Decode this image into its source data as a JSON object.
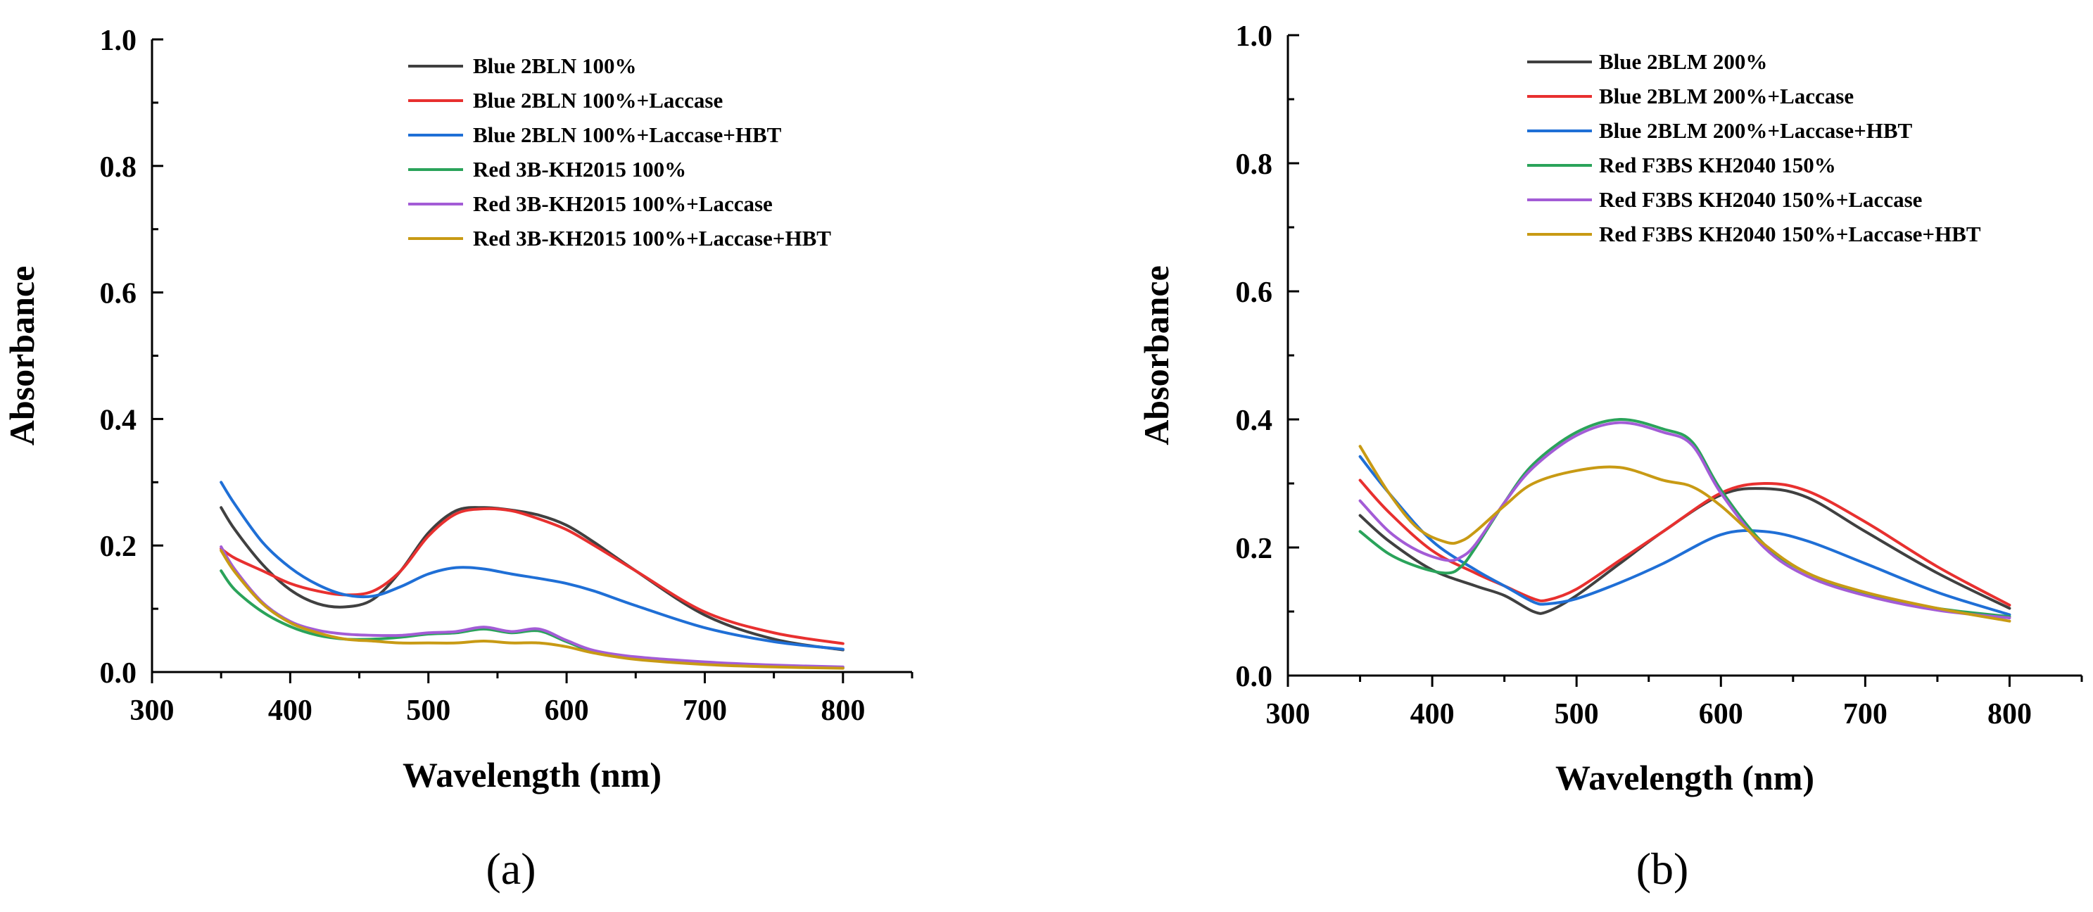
{
  "chart_data": [
    {
      "type": "line",
      "panel_label": "(a)",
      "xlabel": "Wavelength (nm)",
      "ylabel": "Absorbance",
      "xlim": [
        300,
        850
      ],
      "ylim": [
        0,
        1.0
      ],
      "xticks": [
        300,
        400,
        500,
        600,
        700,
        800
      ],
      "yticks": [
        0.0,
        0.2,
        0.4,
        0.6,
        0.8,
        1.0
      ],
      "xtick_labels": [
        "300",
        "400",
        "500",
        "600",
        "700",
        "800"
      ],
      "ytick_labels": [
        "0.0",
        "0.2",
        "0.4",
        "0.6",
        "0.8",
        "1.0"
      ],
      "legend_position": "top-right",
      "series": [
        {
          "name": "Blue 2BLN 100%",
          "color": "#404040",
          "x": [
            350,
            360,
            380,
            400,
            420,
            440,
            460,
            480,
            500,
            520,
            540,
            560,
            580,
            600,
            620,
            650,
            700,
            750,
            800
          ],
          "y": [
            0.26,
            0.225,
            0.17,
            0.13,
            0.108,
            0.103,
            0.115,
            0.16,
            0.22,
            0.255,
            0.26,
            0.256,
            0.248,
            0.232,
            0.205,
            0.16,
            0.09,
            0.052,
            0.035
          ]
        },
        {
          "name": "Blue 2BLN 100%+Laccase",
          "color": "#e8302f",
          "x": [
            350,
            360,
            380,
            400,
            420,
            440,
            460,
            480,
            500,
            520,
            540,
            560,
            580,
            600,
            620,
            650,
            700,
            750,
            800
          ],
          "y": [
            0.195,
            0.18,
            0.16,
            0.14,
            0.128,
            0.122,
            0.128,
            0.16,
            0.215,
            0.25,
            0.258,
            0.255,
            0.242,
            0.225,
            0.2,
            0.16,
            0.095,
            0.062,
            0.045
          ]
        },
        {
          "name": "Blue 2BLN 100%+Laccase+HBT",
          "color": "#1f6fd6",
          "x": [
            350,
            360,
            380,
            400,
            420,
            440,
            460,
            480,
            500,
            520,
            540,
            560,
            580,
            600,
            620,
            650,
            700,
            750,
            800
          ],
          "y": [
            0.3,
            0.265,
            0.205,
            0.165,
            0.138,
            0.122,
            0.12,
            0.135,
            0.155,
            0.165,
            0.163,
            0.155,
            0.148,
            0.14,
            0.128,
            0.105,
            0.07,
            0.048,
            0.036
          ]
        },
        {
          "name": "Red 3B-KH2015 100%",
          "color": "#2aa35a",
          "x": [
            350,
            360,
            380,
            400,
            420,
            440,
            460,
            480,
            500,
            520,
            540,
            560,
            580,
            600,
            620,
            650,
            700,
            750,
            800
          ],
          "y": [
            0.16,
            0.13,
            0.095,
            0.072,
            0.058,
            0.052,
            0.052,
            0.055,
            0.06,
            0.062,
            0.068,
            0.062,
            0.065,
            0.048,
            0.032,
            0.022,
            0.014,
            0.01,
            0.007
          ]
        },
        {
          "name": "Red 3B-KH2015 100%+Laccase",
          "color": "#a35cd6",
          "x": [
            350,
            360,
            380,
            400,
            420,
            440,
            460,
            480,
            500,
            520,
            540,
            560,
            580,
            600,
            620,
            650,
            700,
            750,
            800
          ],
          "y": [
            0.198,
            0.162,
            0.11,
            0.08,
            0.066,
            0.06,
            0.058,
            0.058,
            0.062,
            0.064,
            0.071,
            0.064,
            0.068,
            0.05,
            0.034,
            0.024,
            0.016,
            0.011,
            0.008
          ]
        },
        {
          "name": "Red 3B-KH2015 100%+Laccase+HBT",
          "color": "#c89a14",
          "x": [
            350,
            360,
            380,
            400,
            420,
            440,
            460,
            480,
            500,
            520,
            540,
            560,
            580,
            600,
            620,
            650,
            700,
            750,
            800
          ],
          "y": [
            0.192,
            0.158,
            0.108,
            0.078,
            0.062,
            0.052,
            0.049,
            0.046,
            0.046,
            0.046,
            0.049,
            0.046,
            0.046,
            0.04,
            0.03,
            0.02,
            0.012,
            0.008,
            0.006
          ]
        }
      ]
    },
    {
      "type": "line",
      "panel_label": "(b)",
      "xlabel": "Wavelength (nm)",
      "ylabel": "Absorbance",
      "xlim": [
        300,
        850
      ],
      "ylim": [
        0,
        1.0
      ],
      "xticks": [
        300,
        400,
        500,
        600,
        700,
        800
      ],
      "yticks": [
        0.0,
        0.2,
        0.4,
        0.6,
        0.8,
        1.0
      ],
      "xtick_labels": [
        "300",
        "400",
        "500",
        "600",
        "700",
        "800"
      ],
      "ytick_labels": [
        "0.0",
        "0.2",
        "0.4",
        "0.6",
        "0.8",
        "1.0"
      ],
      "legend_position": "top-right",
      "series": [
        {
          "name": "Blue 2BLM 200%",
          "color": "#404040",
          "x": [
            350,
            370,
            400,
            430,
            450,
            470,
            480,
            500,
            530,
            560,
            600,
            630,
            660,
            700,
            750,
            800
          ],
          "y": [
            0.25,
            0.21,
            0.165,
            0.14,
            0.125,
            0.1,
            0.1,
            0.125,
            0.175,
            0.225,
            0.282,
            0.292,
            0.278,
            0.225,
            0.16,
            0.105
          ]
        },
        {
          "name": "Blue 2BLM 200%+Laccase",
          "color": "#e8302f",
          "x": [
            350,
            370,
            400,
            430,
            450,
            470,
            480,
            500,
            530,
            560,
            600,
            630,
            660,
            700,
            750,
            800
          ],
          "y": [
            0.305,
            0.255,
            0.195,
            0.16,
            0.14,
            0.12,
            0.118,
            0.135,
            0.18,
            0.225,
            0.285,
            0.3,
            0.288,
            0.24,
            0.17,
            0.11
          ]
        },
        {
          "name": "Blue 2BLM 200%+Laccase+HBT",
          "color": "#1f6fd6",
          "x": [
            350,
            370,
            400,
            430,
            450,
            470,
            480,
            500,
            530,
            560,
            600,
            630,
            660,
            700,
            750,
            800
          ],
          "y": [
            0.342,
            0.285,
            0.21,
            0.165,
            0.14,
            0.115,
            0.112,
            0.12,
            0.145,
            0.175,
            0.22,
            0.225,
            0.21,
            0.175,
            0.13,
            0.095
          ]
        },
        {
          "name": "Red F3BS KH2040 150%",
          "color": "#2aa35a",
          "x": [
            350,
            370,
            390,
            410,
            420,
            430,
            450,
            470,
            500,
            530,
            560,
            580,
            600,
            630,
            660,
            700,
            750,
            800
          ],
          "y": [
            0.225,
            0.19,
            0.17,
            0.16,
            0.17,
            0.2,
            0.27,
            0.33,
            0.38,
            0.4,
            0.385,
            0.365,
            0.29,
            0.205,
            0.16,
            0.128,
            0.105,
            0.092
          ]
        },
        {
          "name": "Red F3BS KH2040 150%+Laccase",
          "color": "#a35cd6",
          "x": [
            350,
            370,
            390,
            410,
            420,
            430,
            450,
            470,
            500,
            530,
            560,
            580,
            600,
            630,
            660,
            700,
            750,
            800
          ],
          "y": [
            0.273,
            0.225,
            0.195,
            0.18,
            0.185,
            0.205,
            0.27,
            0.325,
            0.375,
            0.395,
            0.38,
            0.36,
            0.285,
            0.2,
            0.155,
            0.125,
            0.102,
            0.09
          ]
        },
        {
          "name": "Red F3BS KH2040 150%+Laccase+HBT",
          "color": "#c89a14",
          "x": [
            350,
            370,
            390,
            410,
            420,
            430,
            450,
            470,
            500,
            530,
            560,
            580,
            600,
            630,
            660,
            700,
            750,
            800
          ],
          "y": [
            0.358,
            0.285,
            0.23,
            0.208,
            0.21,
            0.225,
            0.265,
            0.3,
            0.32,
            0.325,
            0.305,
            0.295,
            0.265,
            0.205,
            0.16,
            0.13,
            0.105,
            0.085
          ]
        }
      ]
    }
  ]
}
